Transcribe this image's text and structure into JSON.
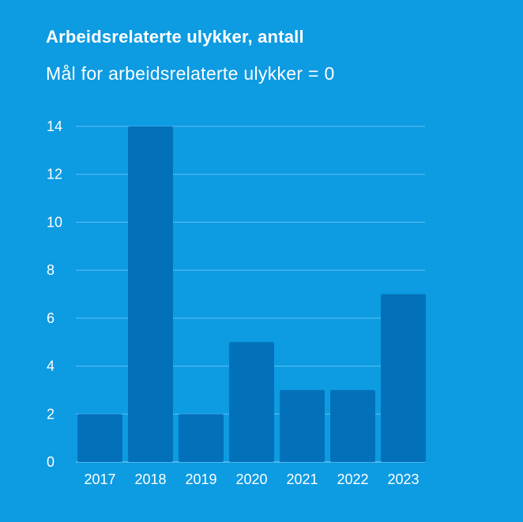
{
  "chart_data": {
    "type": "bar",
    "title": "Arbeidsrelaterte ulykker, antall",
    "subtitle": "Mål for arbeidsrelaterte ulykker = 0",
    "categories": [
      "2017",
      "2018",
      "2019",
      "2020",
      "2021",
      "2022",
      "2023"
    ],
    "values": [
      2,
      14,
      2,
      5,
      3,
      3,
      7
    ],
    "xlabel": "",
    "ylabel": "",
    "ylim": [
      0,
      14
    ],
    "yticks": [
      0,
      2,
      4,
      6,
      8,
      10,
      12,
      14
    ],
    "grid": true,
    "legend": "none"
  },
  "colors": {
    "background": "#0d9be2",
    "bar": "#0371b9",
    "gridline": "#5fc2f0",
    "text": "#ffffff"
  }
}
